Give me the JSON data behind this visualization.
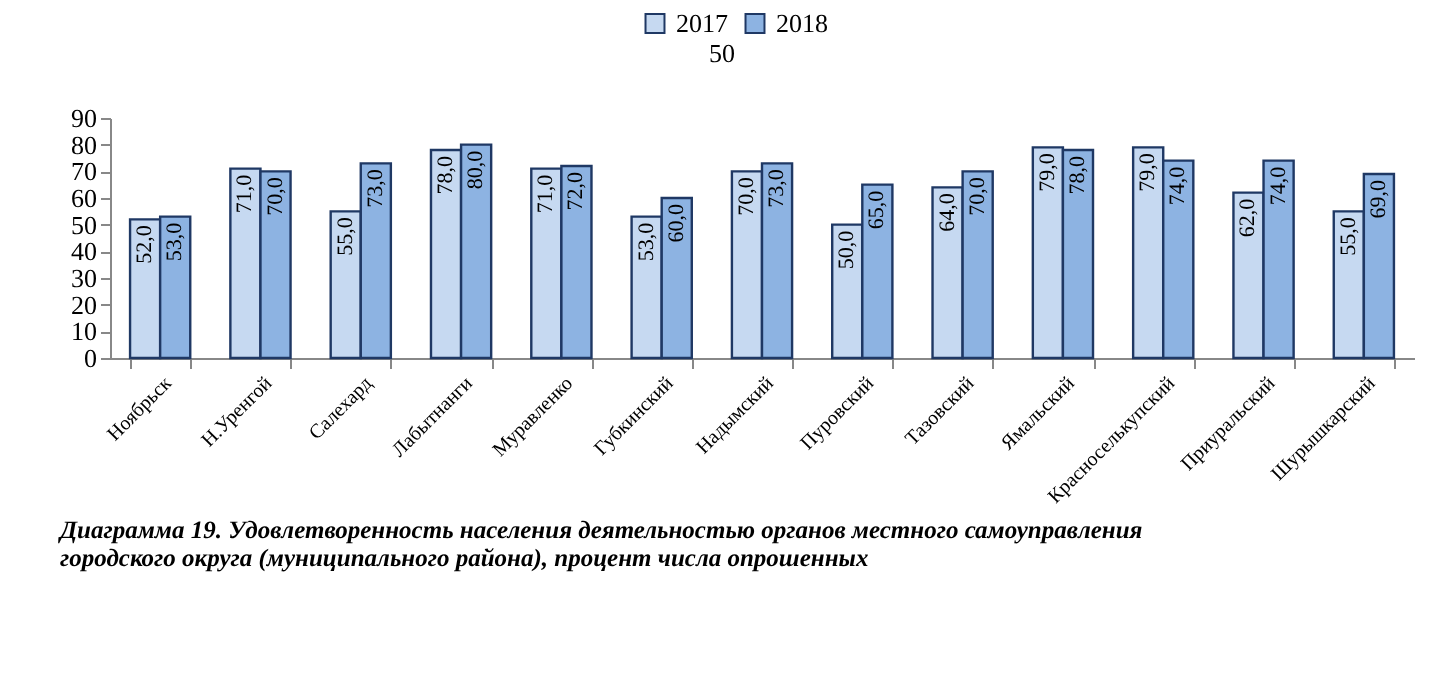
{
  "chart_data": {
    "type": "bar",
    "categories": [
      "Ноябрьск",
      "Н.Уренгой",
      "Салехард",
      "Лабытнанги",
      "Муравленко",
      "Губкинский",
      "Надымский",
      "Пуровский",
      "Тазовский",
      "Ямальский",
      "Красноселькупский",
      "Приуральский",
      "Шурышкарский"
    ],
    "series": [
      {
        "name": "2017",
        "color": "#c6d9f1",
        "values": [
          52,
          71,
          55,
          78,
          71,
          53,
          70,
          50,
          64,
          79,
          79,
          62,
          55
        ],
        "value_labels": [
          "52,0",
          "71,0",
          "55,0",
          "78,0",
          "71,0",
          "53,0",
          "70,0",
          "50,0",
          "64,0",
          "79,0",
          "79,0",
          "62,0",
          "55,0"
        ]
      },
      {
        "name": "2018",
        "color": "#8db3e2",
        "values": [
          53,
          70,
          73,
          80,
          72,
          60,
          73,
          65,
          70,
          78,
          74,
          74,
          69
        ],
        "value_labels": [
          "53,0",
          "70,0",
          "73,0",
          "80,0",
          "72,0",
          "60,0",
          "73,0",
          "65,0",
          "70,0",
          "78,0",
          "74,0",
          "74,0",
          "69,0"
        ]
      }
    ],
    "ylim": [
      0,
      90
    ],
    "yticks": [
      0,
      10,
      20,
      30,
      40,
      50,
      60,
      70,
      80,
      90
    ],
    "grid": false,
    "legend": "top",
    "annotations": [
      "50",
      "Диаграмма 19. Удовлетворенность населения деятельностью органов местного самоуправления городского округа (муниципального района), процент числа опрошенных"
    ]
  }
}
